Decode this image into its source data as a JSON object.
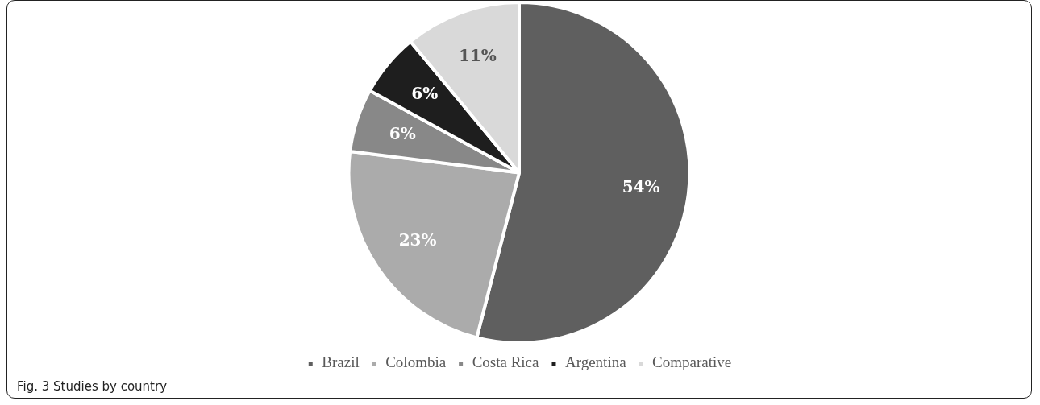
{
  "chart_data": {
    "type": "pie",
    "categories": [
      "Brazil",
      "Colombia",
      "Costa Rica",
      "Argentina",
      "Comparative"
    ],
    "values": [
      54,
      23,
      6,
      6,
      11
    ],
    "colors": [
      "#5f5f5f",
      "#ababab",
      "#888888",
      "#1e1e1e",
      "#d9d9d9"
    ],
    "value_labels": [
      "54%",
      "23%",
      "6%",
      "6%",
      "11%"
    ],
    "legend": "bottom",
    "annotations": [
      "Fig. 3 Studies by country"
    ]
  }
}
